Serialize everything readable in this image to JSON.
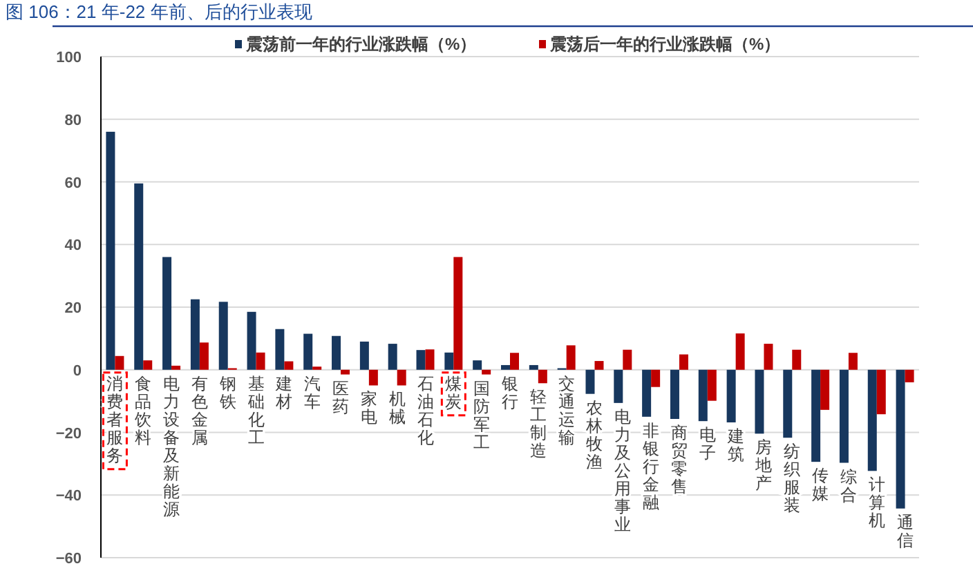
{
  "chart_data": {
    "type": "bar",
    "title": "图 106：21 年-22 年前、后的行业表现",
    "categories": [
      "消费者服务",
      "食品饮料",
      "电力设备及新能源",
      "有色金属",
      "钢铁",
      "基础化工",
      "建材",
      "汽车",
      "医药",
      "家电",
      "机械",
      "石油石化",
      "煤炭",
      "国防军工",
      "银行",
      "轻工制造",
      "交通运输",
      "农林牧渔",
      "电力及公用事业",
      "非银行金融",
      "商贸零售",
      "电子",
      "建筑",
      "房地产",
      "纺织服装",
      "传媒",
      "综合",
      "计算机",
      "通信"
    ],
    "series": [
      {
        "name": "震荡前一年的行业涨跌幅（%）",
        "color": "#17375e",
        "values": [
          76,
          59.5,
          36,
          22.5,
          21.7,
          18.5,
          13,
          11.5,
          10.8,
          9,
          8.3,
          6.3,
          5.5,
          3,
          1.5,
          1.5,
          0.5,
          -7.7,
          -10.6,
          -15,
          -15.7,
          -16.4,
          -16.8,
          -20.4,
          -21.7,
          -29.4,
          -29.7,
          -32.3,
          -44.3
        ]
      },
      {
        "name": "震荡后一年的行业涨跌幅（%）",
        "color": "#c00000",
        "values": [
          4.4,
          3,
          1.3,
          8.7,
          0.5,
          5.5,
          2.7,
          1,
          -1.5,
          -5,
          -5,
          6.5,
          36,
          -1.5,
          5.4,
          -4.3,
          7.8,
          2.8,
          6.4,
          -5.5,
          4.9,
          -9.9,
          11.6,
          8.3,
          6.4,
          -12.8,
          5.4,
          -14.2,
          -4
        ]
      }
    ],
    "ylim": [
      -60,
      100
    ],
    "yticks": [
      -60,
      -40,
      -20,
      0,
      20,
      40,
      60,
      80,
      100
    ],
    "grid": "y",
    "legend": "top"
  }
}
